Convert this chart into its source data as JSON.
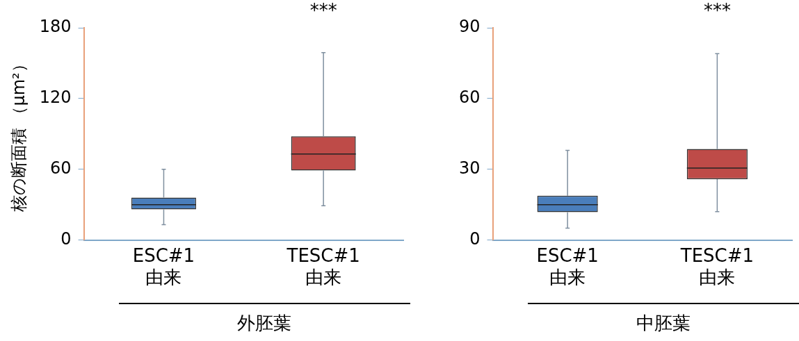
{
  "chart_data": [
    {
      "type": "box",
      "categories": [
        "ESC#1\n由来",
        "TESC#1\n由来"
      ],
      "colors": [
        "#4a7ebb",
        "#be4b48"
      ],
      "ylabel": "核の断面積 （μm²）",
      "xlabel": "外胚葉",
      "ylim": [
        0,
        180
      ],
      "yticks": [
        0,
        60,
        120,
        180
      ],
      "grid": false,
      "legend": false,
      "boxes": [
        {
          "low": 13,
          "q1": 26,
          "median": 30,
          "q3": 36,
          "high": 60
        },
        {
          "low": 29,
          "q1": 59,
          "median": 73,
          "q3": 88,
          "high": 159
        }
      ],
      "annotations": [
        "***"
      ]
    },
    {
      "type": "box",
      "categories": [
        "ESC#1\n由来",
        "TESC#1\n由来"
      ],
      "colors": [
        "#4a7ebb",
        "#be4b48"
      ],
      "xlabel": "中胚葉",
      "ylim": [
        0,
        90
      ],
      "yticks": [
        0,
        30,
        60,
        90
      ],
      "grid": false,
      "legend": false,
      "boxes": [
        {
          "low": 5,
          "q1": 11.8,
          "median": 15,
          "q3": 18.8,
          "high": 38
        },
        {
          "low": 12,
          "q1": 25.8,
          "median": 30.5,
          "q3": 38.6,
          "high": 79
        }
      ],
      "annotations": [
        "***"
      ]
    }
  ]
}
